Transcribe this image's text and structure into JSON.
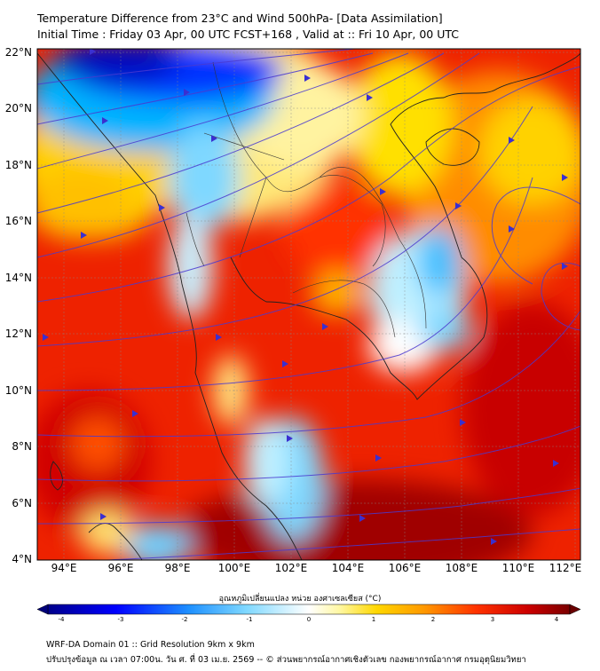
{
  "title": {
    "line1": "Temperature Difference from 23°C and Wind 500hPa- [Data Assimilation]",
    "line2": "Initial Time : Friday 03 Apr, 00 UTC FCST+168 , Valid at ::  Fri 10 Apr, 00 UTC"
  },
  "axes": {
    "lat_labels": [
      "22°N",
      "20°N",
      "18°N",
      "16°N",
      "14°N",
      "12°N",
      "10°N",
      "8°N",
      "6°N",
      "4°N"
    ],
    "lon_labels": [
      "94°E",
      "96°E",
      "98°E",
      "100°E",
      "102°E",
      "104°E",
      "106°E",
      "108°E",
      "110°E",
      "112°E"
    ]
  },
  "colorbar": {
    "label": "อุณหภูมิเปลี่ยนแปลง หน่วย องศาเซลเซียส (°C)",
    "ticks": [
      "-4",
      "-3",
      "-2",
      "-1",
      "0",
      "1",
      "2",
      "3",
      "4"
    ],
    "colors": {
      "cold": "#00008b",
      "cool": "#1e90ff",
      "neutral": "#ffffff",
      "warm": "#ffd700",
      "hot": "#e10000",
      "extreme": "#7a0000"
    }
  },
  "footer": {
    "line1": "WRF-DA Domain 01 :: Grid Resolution 9km x 9km",
    "line2": "ปรับปรุงข้อมูล ณ เวลา 07:00น. วัน ศ. ที่ 03 เม.ย. 2569 -- © ส่วนพยากรณ์อากาศเชิงตัวเลข กองพยากรณ์อากาศ กรมอุตุนิยมวิทยา"
  }
}
